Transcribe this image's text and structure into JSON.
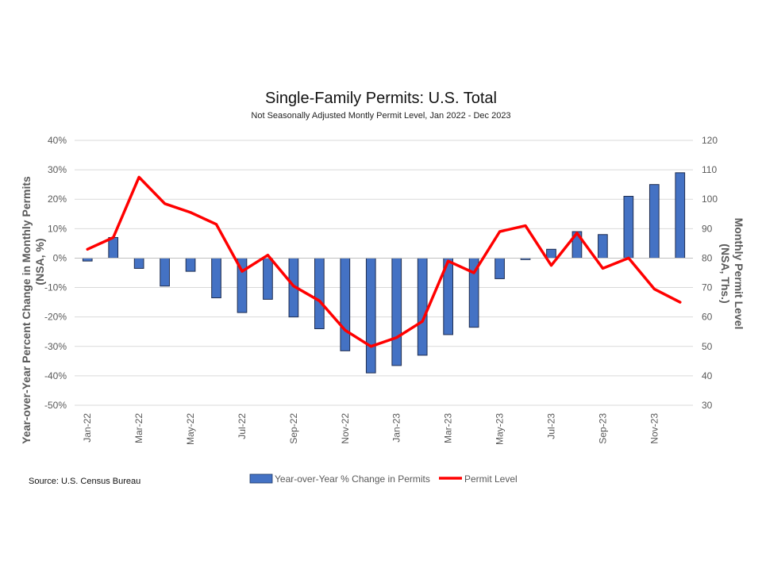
{
  "chart_data": {
    "type": "bar",
    "title": "Single-Family Permits: U.S. Total",
    "subtitle": "Not Seasonally Adjusted Montly Permit Level, Jan 2022 - Dec 2023",
    "source": "Source: U.S. Census Bureau",
    "y_left": {
      "label_line1": "Year-over-Year Percent Change in Monthly Permits",
      "label_line2": "(NSA, %)",
      "lim": [
        -50,
        40
      ],
      "ticks": [
        40,
        30,
        20,
        10,
        0,
        -10,
        -20,
        -30,
        -40,
        -50
      ],
      "tick_labels": [
        "40%",
        "30%",
        "20%",
        "10%",
        "0%",
        "-10%",
        "-20%",
        "-30%",
        "-40%",
        "-50%"
      ]
    },
    "y_right": {
      "label_line1": "Monthly Permit Level",
      "label_line2": "(NSA, Ths.)",
      "lim": [
        30,
        120
      ],
      "ticks": [
        120,
        110,
        100,
        90,
        80,
        70,
        60,
        50,
        40,
        30
      ],
      "tick_labels": [
        "120",
        "110",
        "100",
        "90",
        "80",
        "70",
        "60",
        "50",
        "40",
        "30"
      ]
    },
    "categories": [
      "Jan-22",
      "Feb-22",
      "Mar-22",
      "Apr-22",
      "May-22",
      "Jun-22",
      "Jul-22",
      "Aug-22",
      "Sep-22",
      "Oct-22",
      "Nov-22",
      "Dec-22",
      "Jan-23",
      "Feb-23",
      "Mar-23",
      "Apr-23",
      "May-23",
      "Jun-23",
      "Jul-23",
      "Aug-23",
      "Sep-23",
      "Oct-23",
      "Nov-23",
      "Dec-23"
    ],
    "x_tick_labels": [
      "Jan-22",
      "Mar-22",
      "May-22",
      "Jul-22",
      "Sep-22",
      "Nov-22",
      "Jan-23",
      "Mar-23",
      "May-23",
      "Jul-23",
      "Sep-23",
      "Nov-23"
    ],
    "series": [
      {
        "name": "Year-over-Year % Change in Permits",
        "kind": "bar",
        "axis": "left",
        "color": "#4472C4",
        "values": [
          -1,
          7,
          -3.5,
          -9.5,
          -4.5,
          -13.5,
          -18.5,
          -14,
          -20,
          -24,
          -31.5,
          -39,
          -36.5,
          -33,
          -26,
          -23.5,
          -7,
          -0.5,
          3,
          9,
          8,
          21,
          25,
          29
        ]
      },
      {
        "name": "Permit Level",
        "kind": "line",
        "axis": "right",
        "color": "#FF0000",
        "values": [
          83,
          87,
          107.5,
          98.5,
          95.5,
          91.5,
          75.5,
          81,
          70.5,
          65.5,
          55.5,
          50,
          53,
          58.5,
          79,
          75,
          89,
          91,
          77.5,
          88.5,
          76.5,
          80,
          69.5,
          65
        ]
      }
    ],
    "legend_position": "bottom",
    "grid": true
  }
}
